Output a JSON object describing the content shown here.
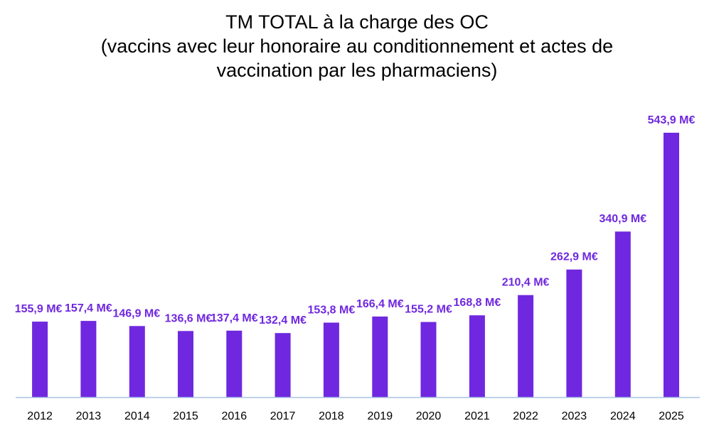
{
  "chart_data": {
    "type": "bar",
    "title_lines": [
      "TM TOTAL à la charge des OC",
      "(vaccins avec leur honoraire au conditionnement et actes de",
      "vaccination par les pharmaciens)"
    ],
    "categories": [
      "2012",
      "2013",
      "2014",
      "2015",
      "2016",
      "2017",
      "2018",
      "2019",
      "2020",
      "2021",
      "2022",
      "2023",
      "2024",
      "2025"
    ],
    "values": [
      155.9,
      157.4,
      146.9,
      136.6,
      137.4,
      132.4,
      153.8,
      166.4,
      155.2,
      168.8,
      210.4,
      262.9,
      340.9,
      543.9
    ],
    "data_labels": [
      "155,9  M€",
      "157,4  M€",
      "146,9  M€",
      "136,6  M€",
      "137,4  M€",
      "132,4  M€",
      "153,8  M€",
      "166,4  M€",
      "155,2  M€",
      "168,8  M€",
      "210,4  M€",
      "262,9  M€",
      "340,9  M€",
      "543,9  M€"
    ],
    "xlabel": "",
    "ylabel": "",
    "grid": false,
    "legend": "none",
    "colors": {
      "bar": "#6f28df",
      "label": "#6f28df",
      "axis": "#a9c4e6"
    }
  }
}
